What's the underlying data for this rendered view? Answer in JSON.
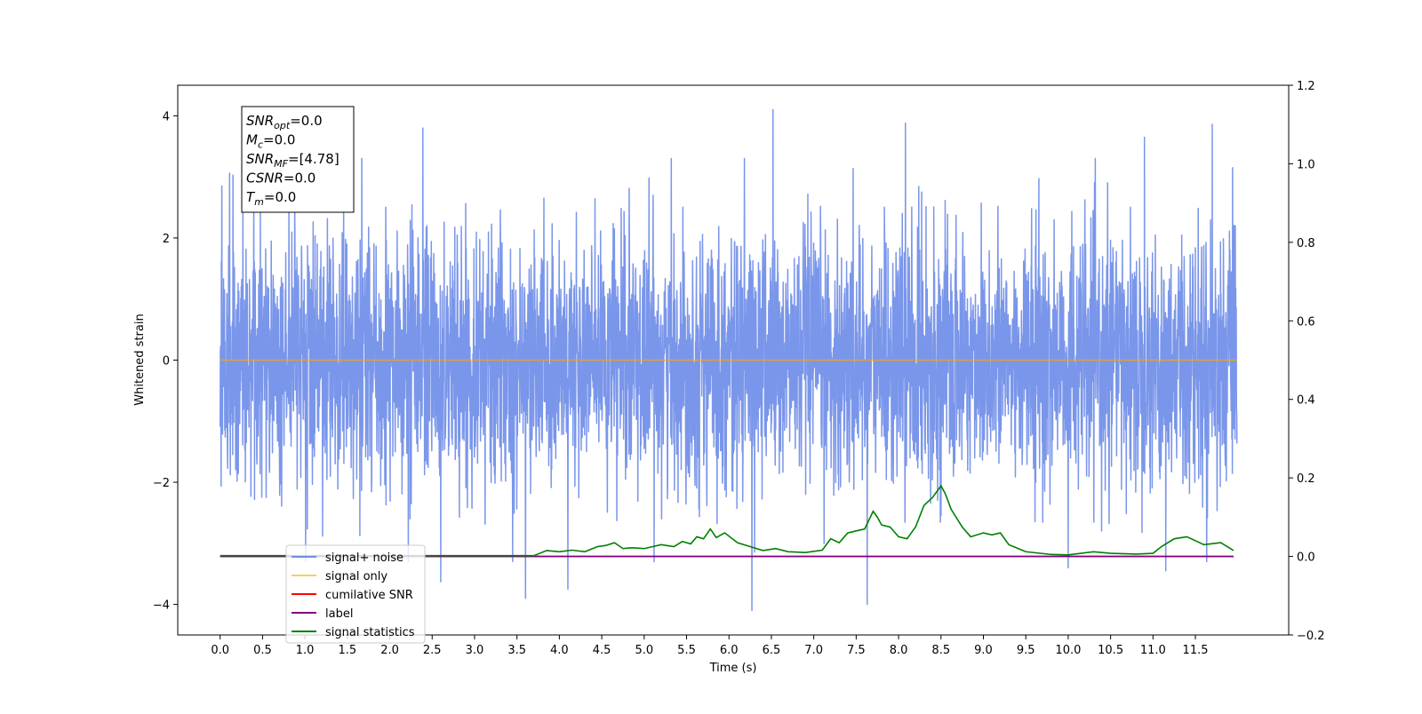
{
  "chart_data": {
    "type": "line",
    "xlabel": "Time (s)",
    "ylabel": "Whitened strain",
    "xlim": [
      -0.5,
      12.6
    ],
    "ylim": [
      -4.5,
      4.5
    ],
    "y2lim": [
      -0.2,
      1.2
    ],
    "x_ticks": [
      "0.0",
      "0.5",
      "1.0",
      "1.5",
      "2.0",
      "2.5",
      "3.0",
      "3.5",
      "4.0",
      "4.5",
      "5.0",
      "5.5",
      "6.0",
      "6.5",
      "7.0",
      "7.5",
      "8.0",
      "8.5",
      "9.0",
      "9.5",
      "10.0",
      "10.5",
      "11.0",
      "11.5"
    ],
    "y_ticks": [
      "4",
      "2",
      "0",
      "−2",
      "−4"
    ],
    "y2_ticks": [
      "1.2",
      "1.0",
      "0.8",
      "0.6",
      "0.4",
      "0.2",
      "0.0",
      "−0.2"
    ],
    "legend_position": "lower-left",
    "grid": false,
    "annotation": {
      "lines": [
        {
          "base": "SNR",
          "sub": "opt",
          "value": "=0.0"
        },
        {
          "base": "M",
          "sub": "c",
          "value": "=0.0"
        },
        {
          "base": "SNR",
          "sub": "MF",
          "value": "=[4.78]"
        },
        {
          "base": "CSNR",
          "sub": "",
          "value": "=0.0"
        },
        {
          "base": "T",
          "sub": "m",
          "value": "=0.0"
        }
      ]
    },
    "series": [
      {
        "name": "signal+ noise",
        "axis": "left",
        "color": "#4169e1",
        "x_range": [
          0.0,
          11.99
        ],
        "noise": true,
        "peaks": [
          {
            "x": 0.02,
            "y": 2.85
          },
          {
            "x": 2.39,
            "y": 3.8
          },
          {
            "x": 6.52,
            "y": 4.1
          },
          {
            "x": 8.08,
            "y": 3.88
          },
          {
            "x": 10.9,
            "y": 3.65
          },
          {
            "x": 11.7,
            "y": 3.86
          },
          {
            "x": 11.94,
            "y": 3.15
          },
          {
            "x": 2.6,
            "y": -3.63
          },
          {
            "x": 3.6,
            "y": -3.9
          },
          {
            "x": 4.1,
            "y": -3.75
          },
          {
            "x": 6.27,
            "y": -4.1
          },
          {
            "x": 7.63,
            "y": -4.0
          },
          {
            "x": 10.0,
            "y": -3.4
          },
          {
            "x": 11.15,
            "y": -3.45
          }
        ]
      },
      {
        "name": "signal only",
        "axis": "left",
        "color": "#ffa500",
        "x": [
          0.0,
          11.99
        ],
        "values": [
          0.0,
          0.0
        ]
      },
      {
        "name": "cumilative SNR",
        "axis": "right",
        "color": "#ff0000",
        "x": [
          0.0,
          11.95
        ],
        "values": [
          0.0,
          0.0
        ]
      },
      {
        "name": "label",
        "axis": "right",
        "color": "#800080",
        "x": [
          0.0,
          11.95
        ],
        "values": [
          0.0,
          0.0
        ]
      },
      {
        "name": "signal statistics",
        "axis": "right",
        "color": "#008000",
        "x": [
          0.0,
          3.7,
          3.85,
          4.0,
          4.15,
          4.3,
          4.45,
          4.55,
          4.65,
          4.75,
          4.85,
          5.0,
          5.2,
          5.35,
          5.45,
          5.55,
          5.62,
          5.7,
          5.78,
          5.85,
          5.95,
          6.1,
          6.25,
          6.4,
          6.55,
          6.7,
          6.9,
          7.1,
          7.2,
          7.3,
          7.4,
          7.5,
          7.6,
          7.7,
          7.75,
          7.8,
          7.9,
          8.0,
          8.1,
          8.2,
          8.3,
          8.4,
          8.5,
          8.55,
          8.62,
          8.75,
          8.85,
          9.0,
          9.1,
          9.2,
          9.3,
          9.5,
          9.8,
          10.0,
          10.3,
          10.5,
          10.8,
          11.0,
          11.1,
          11.25,
          11.4,
          11.6,
          11.8,
          11.95
        ],
        "values": [
          0.002,
          0.002,
          0.015,
          0.012,
          0.016,
          0.012,
          0.025,
          0.028,
          0.035,
          0.02,
          0.022,
          0.02,
          0.03,
          0.025,
          0.038,
          0.032,
          0.05,
          0.045,
          0.07,
          0.048,
          0.06,
          0.035,
          0.025,
          0.015,
          0.02,
          0.012,
          0.01,
          0.016,
          0.045,
          0.035,
          0.06,
          0.065,
          0.07,
          0.115,
          0.1,
          0.08,
          0.075,
          0.05,
          0.045,
          0.075,
          0.13,
          0.15,
          0.18,
          0.16,
          0.12,
          0.075,
          0.05,
          0.06,
          0.055,
          0.06,
          0.03,
          0.012,
          0.005,
          0.004,
          0.012,
          0.008,
          0.006,
          0.008,
          0.025,
          0.045,
          0.05,
          0.03,
          0.035,
          0.015
        ]
      }
    ]
  }
}
